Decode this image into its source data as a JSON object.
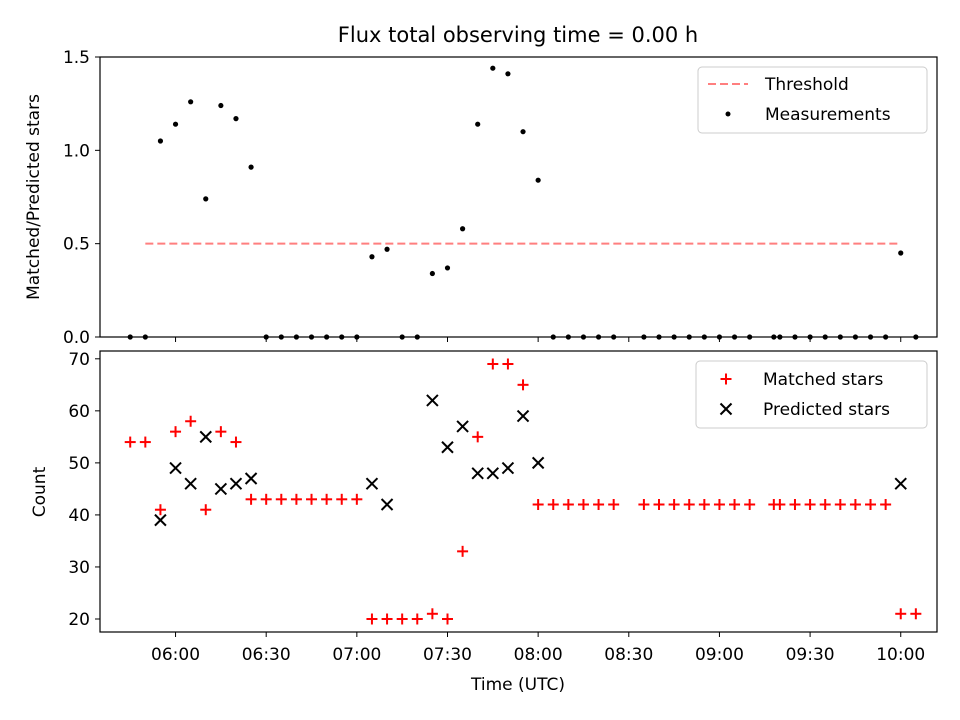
{
  "chart_data": [
    {
      "type": "scatter",
      "title": "Flux total observing time = 0.00 h",
      "xlabel": "",
      "ylabel": "Matched/Predicted stars",
      "ylim": [
        0,
        1.5
      ],
      "yticks": [
        "0.0",
        "0.5",
        "1.0",
        "1.5"
      ],
      "legend_position": "top-right",
      "threshold": {
        "name": "Threshold",
        "value": 0.5,
        "x_start": "05:50",
        "x_end": "10:00",
        "color": "#ff7f7f"
      },
      "series": [
        {
          "name": "Measurements",
          "color": "#000000",
          "marker": "dot",
          "x": [
            "05:45",
            "05:50",
            "05:55",
            "06:00",
            "06:05",
            "06:10",
            "06:15",
            "06:20",
            "06:25",
            "06:30",
            "06:35",
            "06:40",
            "06:45",
            "06:50",
            "06:55",
            "07:00",
            "07:05",
            "07:10",
            "07:15",
            "07:20",
            "07:25",
            "07:30",
            "07:35",
            "07:40",
            "07:45",
            "07:50",
            "07:55",
            "08:00",
            "08:05",
            "08:10",
            "08:15",
            "08:20",
            "08:25",
            "08:35",
            "08:40",
            "08:45",
            "08:50",
            "08:55",
            "09:00",
            "09:05",
            "09:10",
            "09:18",
            "09:20",
            "09:25",
            "09:30",
            "09:35",
            "09:40",
            "09:45",
            "09:50",
            "09:55",
            "10:00",
            "10:05"
          ],
          "values": [
            0,
            0,
            1.05,
            1.14,
            1.26,
            0.74,
            1.24,
            1.17,
            0.91,
            0,
            0,
            0,
            0,
            0,
            0,
            0,
            0.43,
            0.47,
            0,
            0,
            0.34,
            0.37,
            0.58,
            1.14,
            1.44,
            1.41,
            1.1,
            0.84,
            0,
            0,
            0,
            0,
            0,
            0,
            0,
            0,
            0,
            0,
            0,
            0,
            0,
            0,
            0,
            0,
            0,
            0,
            0,
            0,
            0,
            0,
            0.45,
            0
          ]
        }
      ]
    },
    {
      "type": "scatter",
      "title": "",
      "xlabel": "Time (UTC)",
      "ylabel": "Count",
      "ylim": [
        17.5,
        71.5
      ],
      "yticks": [
        "20",
        "30",
        "40",
        "50",
        "60",
        "70"
      ],
      "xticks": [
        "06:00",
        "06:30",
        "07:00",
        "07:30",
        "08:00",
        "08:30",
        "09:00",
        "09:30",
        "10:00"
      ],
      "legend_position": "top-right",
      "series": [
        {
          "name": "Matched stars",
          "color": "#ff0000",
          "marker": "plus",
          "x": [
            "05:45",
            "05:50",
            "05:55",
            "06:00",
            "06:05",
            "06:10",
            "06:15",
            "06:20",
            "06:25",
            "06:30",
            "06:35",
            "06:40",
            "06:45",
            "06:50",
            "06:55",
            "07:00",
            "07:05",
            "07:10",
            "07:15",
            "07:20",
            "07:25",
            "07:30",
            "07:35",
            "07:40",
            "07:45",
            "07:50",
            "07:55",
            "08:00",
            "08:05",
            "08:10",
            "08:15",
            "08:20",
            "08:25",
            "08:35",
            "08:40",
            "08:45",
            "08:50",
            "08:55",
            "09:00",
            "09:05",
            "09:10",
            "09:18",
            "09:20",
            "09:25",
            "09:30",
            "09:35",
            "09:40",
            "09:45",
            "09:50",
            "09:55",
            "10:00",
            "10:05"
          ],
          "values": [
            54,
            54,
            41,
            56,
            58,
            41,
            56,
            54,
            43,
            43,
            43,
            43,
            43,
            43,
            43,
            43,
            20,
            20,
            20,
            20,
            21,
            20,
            33,
            55,
            69,
            69,
            65,
            42,
            42,
            42,
            42,
            42,
            42,
            42,
            42,
            42,
            42,
            42,
            42,
            42,
            42,
            42,
            42,
            42,
            42,
            42,
            42,
            42,
            42,
            42,
            21,
            21
          ]
        },
        {
          "name": "Predicted stars",
          "color": "#000000",
          "marker": "x",
          "x": [
            "05:55",
            "06:00",
            "06:05",
            "06:10",
            "06:15",
            "06:20",
            "06:25",
            "07:05",
            "07:10",
            "07:25",
            "07:30",
            "07:35",
            "07:40",
            "07:45",
            "07:50",
            "07:55",
            "08:00",
            "10:00"
          ],
          "values": [
            39,
            49,
            46,
            55,
            45,
            46,
            47,
            46,
            42,
            62,
            53,
            57,
            48,
            48,
            49,
            59,
            50,
            46
          ]
        }
      ]
    }
  ]
}
